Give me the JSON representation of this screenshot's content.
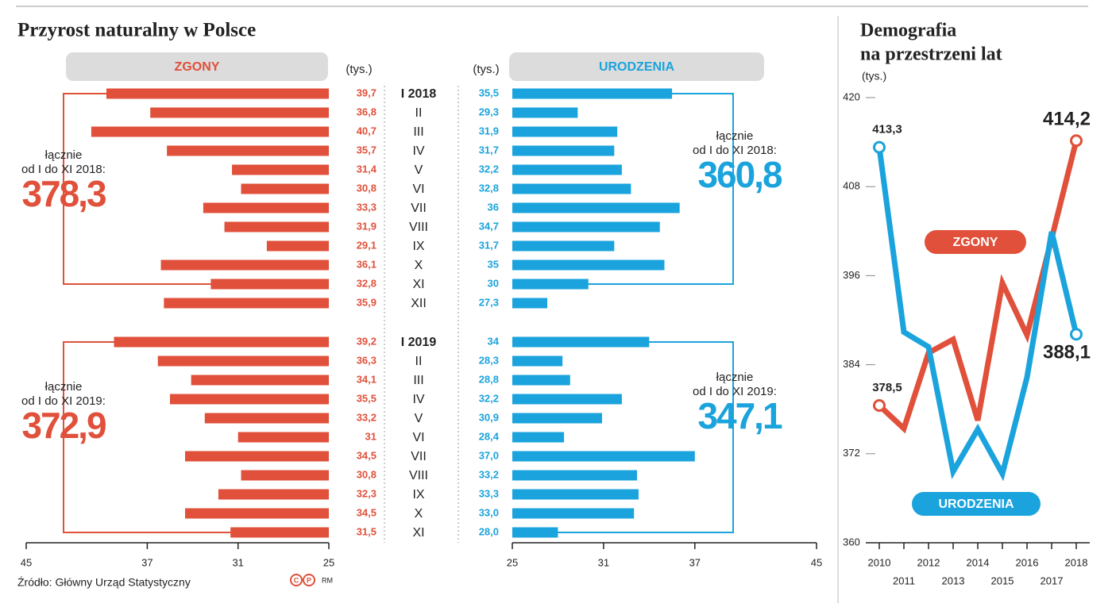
{
  "title": "Przyrost naturalny w Polsce",
  "source": "Źródło: Główny Urząd Statystyczny",
  "logo": [
    "C",
    "P"
  ],
  "credit": "RM",
  "chart_data": [
    {
      "type": "hbar",
      "title": "ZGONY",
      "unit": "(tys.)",
      "color": "#e0503a",
      "categories": [
        "I 2018",
        "II",
        "III",
        "IV",
        "V",
        "VI",
        "VII",
        "VIII",
        "IX",
        "X",
        "XI",
        "XII",
        "I 2019",
        "II",
        "III",
        "IV",
        "V",
        "VI",
        "VII",
        "VIII",
        "IX",
        "X",
        "XI"
      ],
      "values": [
        39.7,
        36.8,
        40.7,
        35.7,
        31.4,
        30.8,
        33.3,
        31.9,
        29.1,
        36.1,
        32.8,
        35.9,
        39.2,
        36.3,
        34.1,
        35.5,
        33.2,
        31,
        34.5,
        30.8,
        32.3,
        34.5,
        31.5
      ],
      "value_labels": [
        "39,7",
        "36,8",
        "40,7",
        "35,7",
        "31,4",
        "30,8",
        "33,3",
        "31,9",
        "29,1",
        "36,1",
        "32,8",
        "35,9",
        "39,2",
        "36,3",
        "34,1",
        "35,5",
        "33,2",
        "31",
        "34,5",
        "30,8",
        "32,3",
        "34,5",
        "31,5"
      ],
      "xlim": [
        45,
        25
      ],
      "xticks": [
        45,
        37,
        31,
        25
      ],
      "totals": [
        {
          "lines": [
            "łącznie",
            "od I do XI 2018:"
          ],
          "value": 378.3,
          "label": "378,3"
        },
        {
          "lines": [
            "łącznie",
            "od I do XI 2019:"
          ],
          "value": 372.9,
          "label": "372,9"
        }
      ]
    },
    {
      "type": "hbar",
      "title": "URODZENIA",
      "unit": "(tys.)",
      "color": "#1aa3dc",
      "values": [
        35.5,
        29.3,
        31.9,
        31.7,
        32.2,
        32.8,
        36,
        34.7,
        31.7,
        35,
        30,
        27.3,
        34,
        28.3,
        28.8,
        32.2,
        30.9,
        28.4,
        37.0,
        33.2,
        33.3,
        33.0,
        28.0
      ],
      "value_labels": [
        "35,5",
        "29,3",
        "31,9",
        "31,7",
        "32,2",
        "32,8",
        "36",
        "34,7",
        "31,7",
        "35",
        "30",
        "27,3",
        "34",
        "28,3",
        "28,8",
        "32,2",
        "30,9",
        "28,4",
        "37,0",
        "33,2",
        "33,3",
        "33,0",
        "28,0"
      ],
      "xlim": [
        25,
        45
      ],
      "xticks": [
        25,
        31,
        37,
        45
      ],
      "totals": [
        {
          "lines": [
            "łącznie",
            "od I do XI 2018:"
          ],
          "value": 360.8,
          "label": "360,8"
        },
        {
          "lines": [
            "łącznie",
            "od I do XI 2019:"
          ],
          "value": 347.1,
          "label": "347,1"
        }
      ]
    },
    {
      "type": "line",
      "title": [
        "Demografia",
        "na przestrzeni lat"
      ],
      "unit": "(tys.)",
      "x": [
        2010,
        2011,
        2012,
        2013,
        2014,
        2015,
        2016,
        2017,
        2018
      ],
      "xlim": [
        2010,
        2018
      ],
      "ylim": [
        360,
        420
      ],
      "yticks": [
        360,
        372,
        384,
        396,
        408,
        420
      ],
      "series": [
        {
          "name": "ZGONY",
          "color": "#e0503a",
          "values": [
            378.5,
            375.4,
            385.6,
            387.4,
            376.5,
            395.0,
            388.0,
            401.0,
            414.2
          ],
          "value_labels": [
            "378,5",
            null,
            null,
            null,
            null,
            null,
            null,
            null,
            "414,2"
          ]
        },
        {
          "name": "URODZENIA",
          "color": "#1aa3dc",
          "values": [
            413.3,
            388.4,
            386.4,
            369.6,
            375.3,
            369.3,
            382.3,
            401.9,
            388.1
          ],
          "value_labels": [
            "413,3",
            null,
            null,
            null,
            null,
            null,
            null,
            null,
            "388,1"
          ]
        }
      ]
    }
  ]
}
